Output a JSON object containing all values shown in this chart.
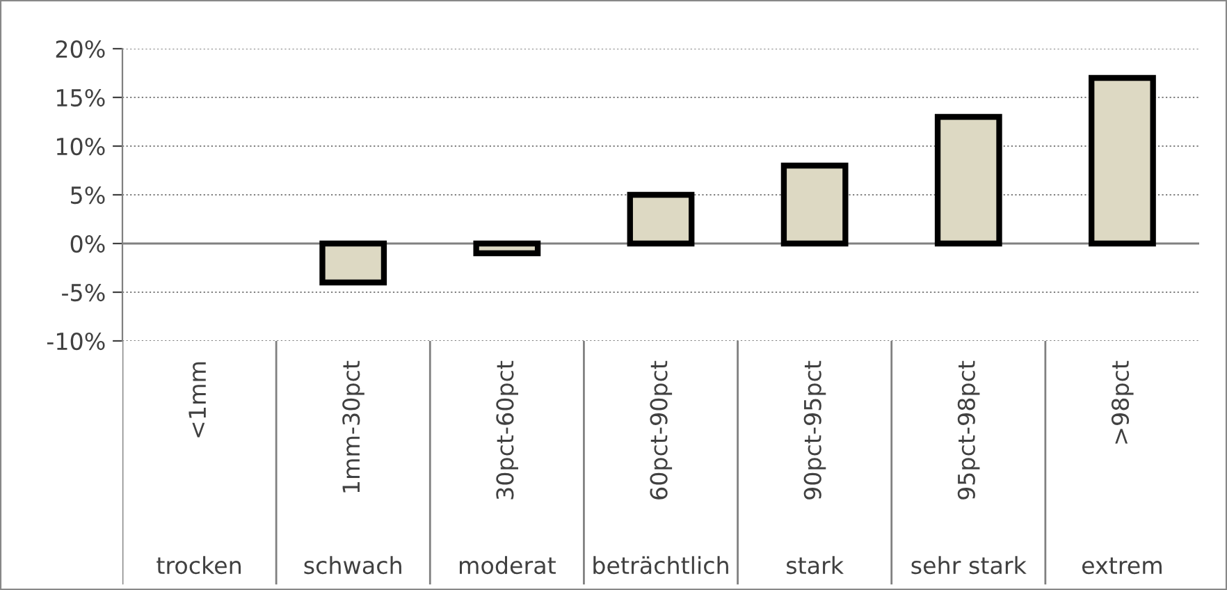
{
  "chart_data": {
    "type": "bar",
    "categories": [
      "<1mm",
      "1mm-30pct",
      "30pct-60pct",
      "60pct-90pct",
      "90pct-95pct",
      "95pct-98pct",
      ">98pct"
    ],
    "values": [
      null,
      -4,
      -1,
      5,
      8,
      13,
      17
    ],
    "color": "#ddd9c3",
    "ylim": [
      -10,
      20
    ],
    "yticks": [
      {
        "value": -10,
        "label": "-10%"
      },
      {
        "value": -5,
        "label": "-5%"
      },
      {
        "value": 0,
        "label": "0%"
      },
      {
        "value": 5,
        "label": "5%"
      },
      {
        "value": 10,
        "label": "10%"
      },
      {
        "value": 15,
        "label": "15%"
      },
      {
        "value": 20,
        "label": "20%"
      }
    ],
    "grid": "y",
    "annotations": [
      "trocken",
      "schwach",
      "moderat",
      "beträchtlich",
      "stark",
      "sehr stark",
      "extrem"
    ]
  }
}
